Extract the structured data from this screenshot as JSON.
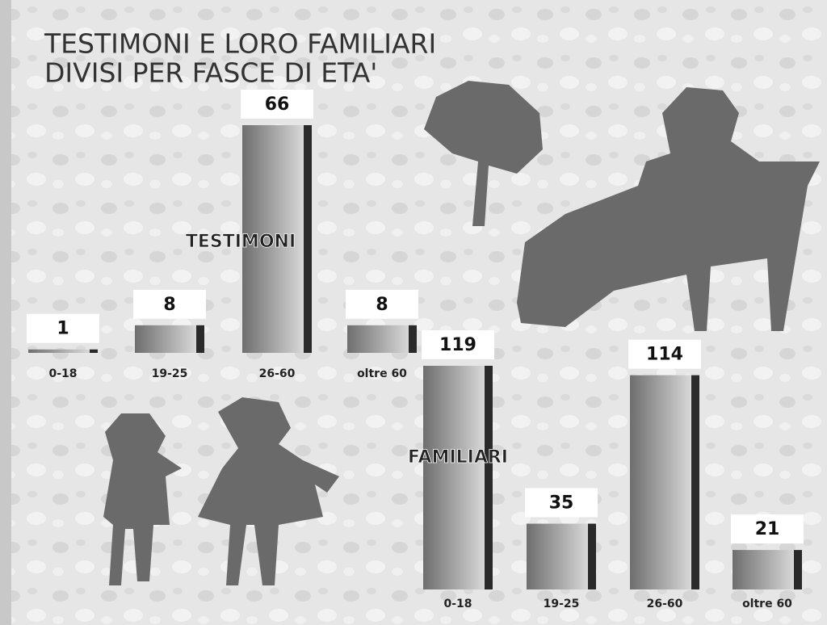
{
  "title": [
    "TESTIMONI E LORO FAMILIARI",
    "DIVISI PER FASCE DI ETA'"
  ],
  "chart_data": [
    {
      "type": "bar",
      "label": "TESTIMONI",
      "categories": [
        "0-18",
        "19-25",
        "26-60",
        "oltre 60"
      ],
      "values": [
        1,
        8,
        66,
        8
      ],
      "color": "#6e6e6e"
    },
    {
      "type": "bar",
      "label": "FAMILIARI",
      "categories": [
        "0-18",
        "19-25",
        "26-60",
        "oltre 60"
      ],
      "values": [
        119,
        35,
        114,
        21
      ],
      "color": "#6e6e6e"
    }
  ]
}
